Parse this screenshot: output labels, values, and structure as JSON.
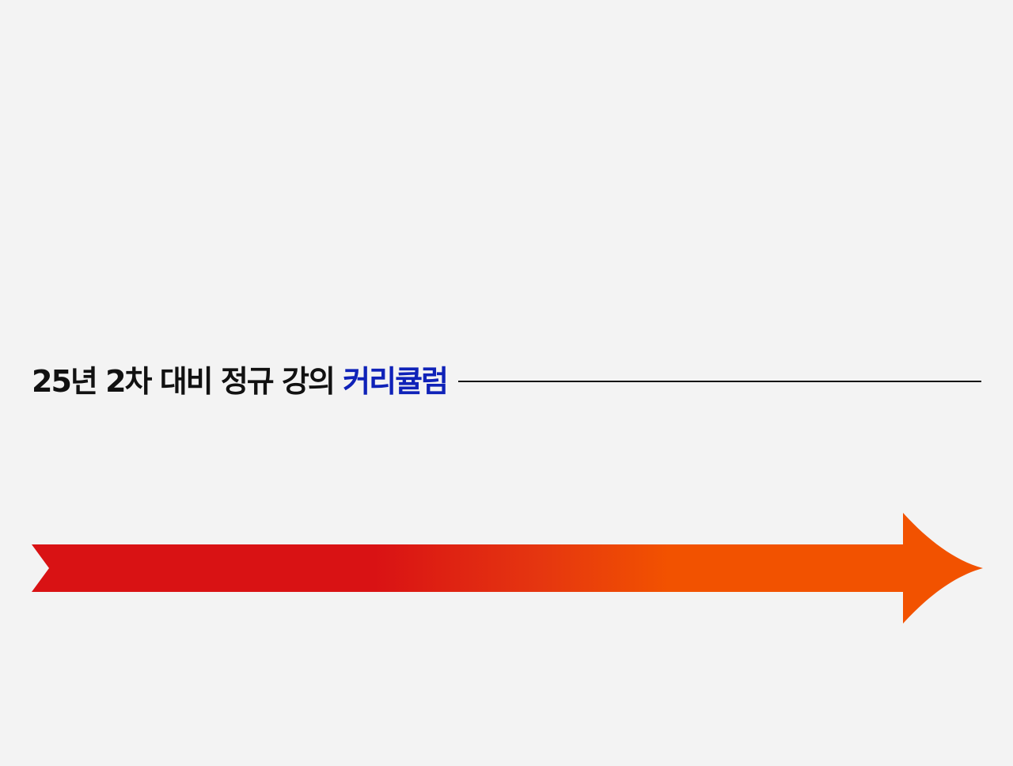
{
  "heading": {
    "text_main": "25년 2차 대비 정규 강의 ",
    "text_accent": "커리큘럼"
  },
  "colors": {
    "background": "#f3f3f3",
    "heading_text": "#111111",
    "heading_accent": "#0f22b8",
    "rule": "#111111",
    "arrow_start": "#d91214",
    "arrow_mid": "#e53510",
    "arrow_end": "#f25200"
  },
  "icons": {
    "arrow": "timeline-arrow-icon"
  }
}
